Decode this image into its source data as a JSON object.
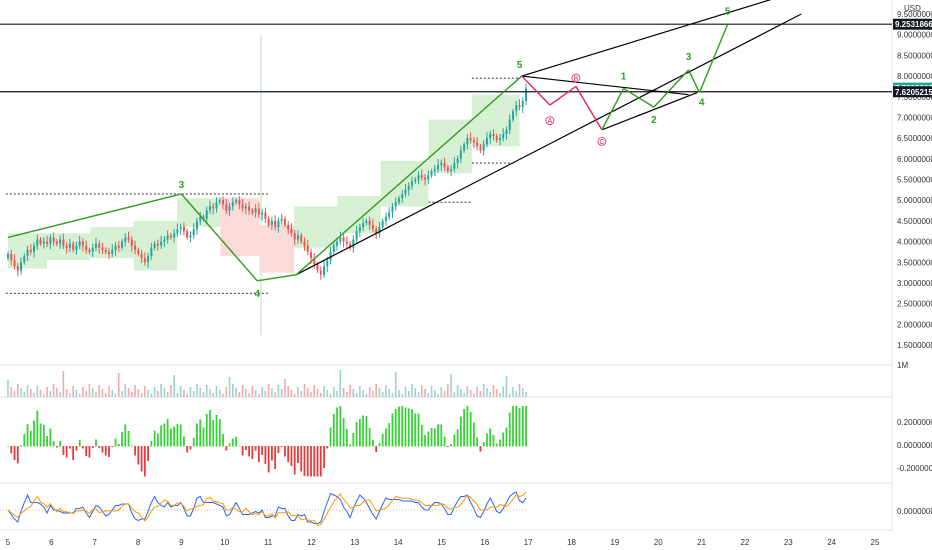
{
  "chart_data": {
    "type": "candlestick",
    "currency": "USD",
    "price_axis": {
      "ticks": [
        "9.5000000",
        "9.0000000",
        "8.5000000",
        "8.0000000",
        "7.5000000",
        "7.0000000",
        "6.5000000",
        "6.0000000",
        "5.5000000",
        "5.0000000",
        "4.5000000",
        "4.0000000",
        "3.5000000",
        "3.0000000",
        "2.5000000",
        "2.0000000",
        "1.5000000"
      ],
      "range": [
        1.2,
        9.75
      ],
      "tags": [
        {
          "value": 9.2531866,
          "label": "9.2531866",
          "color": "#131722"
        },
        {
          "value": 7.7095302,
          "label": "7.7095302",
          "color": "#26a69a"
        },
        {
          "value": 7.6205215,
          "label": "7.6205215",
          "color": "#131722"
        }
      ]
    },
    "time_axis": {
      "labels": [
        "5",
        "6",
        "7",
        "8",
        "9",
        "10",
        "11",
        "12",
        "13",
        "14",
        "15",
        "16",
        "17",
        "18",
        "19",
        "20",
        "21",
        "22",
        "23",
        "24",
        "25"
      ],
      "domain": [
        5,
        25
      ]
    },
    "candles_close": [
      3.7,
      3.55,
      3.4,
      3.3,
      3.5,
      3.65,
      3.8,
      3.75,
      3.9,
      4.05,
      3.95,
      4.0,
      3.95,
      4.1,
      4.0,
      3.95,
      4.05,
      3.9,
      3.85,
      3.95,
      3.8,
      3.9,
      4.0,
      3.9,
      3.8,
      3.75,
      3.85,
      3.95,
      3.85,
      3.8,
      3.75,
      3.7,
      3.8,
      3.9,
      3.85,
      4.0,
      4.1,
      4.05,
      3.9,
      3.8,
      3.7,
      3.6,
      3.5,
      3.65,
      3.85,
      3.95,
      3.9,
      4.0,
      4.05,
      4.15,
      4.1,
      4.2,
      4.3,
      4.35,
      4.25,
      4.1,
      4.15,
      4.3,
      4.5,
      4.6,
      4.55,
      4.75,
      4.85,
      4.8,
      4.95,
      5.0,
      4.9,
      4.75,
      4.85,
      4.95,
      5.0,
      4.9,
      4.8,
      4.85,
      4.75,
      4.7,
      4.8,
      4.65,
      4.7,
      4.55,
      4.4,
      4.5,
      4.35,
      4.5,
      4.55,
      4.4,
      4.3,
      4.2,
      4.05,
      4.15,
      4.0,
      3.9,
      3.75,
      3.6,
      3.45,
      3.3,
      3.2,
      3.4,
      3.55,
      3.75,
      3.9,
      4.0,
      4.1,
      4.0,
      3.95,
      3.85,
      4.05,
      4.25,
      4.35,
      4.45,
      4.5,
      4.4,
      4.3,
      4.2,
      4.35,
      4.5,
      4.6,
      4.7,
      4.85,
      4.95,
      5.05,
      5.15,
      5.25,
      5.35,
      5.45,
      5.5,
      5.6,
      5.55,
      5.5,
      5.6,
      5.7,
      5.75,
      5.85,
      5.9,
      5.8,
      5.7,
      5.75,
      5.9,
      6.0,
      6.2,
      6.35,
      6.5,
      6.45,
      6.4,
      6.3,
      6.2,
      6.35,
      6.5,
      6.6,
      6.55,
      6.45,
      6.5,
      6.6,
      6.7,
      6.95,
      7.15,
      7.3,
      7.25,
      7.4,
      7.7
    ],
    "candle_time_range": [
      5.0,
      16.95
    ],
    "waves": [
      {
        "label": "3",
        "x": 9.0,
        "y": 5.15
      },
      {
        "label": "4",
        "x": 10.75,
        "y": 3.0
      },
      {
        "label": "5",
        "x": 16.8,
        "y": 8.0
      },
      {
        "label": "1",
        "x": 19.2,
        "y": 7.75
      },
      {
        "label": "2",
        "x": 19.9,
        "y": 7.2
      },
      {
        "label": "3",
        "x": 20.7,
        "y": 8.2
      },
      {
        "label": "4",
        "x": 21.0,
        "y": 7.6
      },
      {
        "label": "5",
        "x": 21.6,
        "y": 9.3
      }
    ],
    "corrective_labels": [
      {
        "label": "A",
        "x": 17.5,
        "y": 7.2
      },
      {
        "label": "B",
        "x": 18.1,
        "y": 7.75
      },
      {
        "label": "C",
        "x": 18.7,
        "y": 6.7
      }
    ],
    "bottom_axis_labels": [
      "1M",
      "0.2000000",
      "0.0000000",
      "-0.2000000",
      "0.0000000"
    ]
  }
}
